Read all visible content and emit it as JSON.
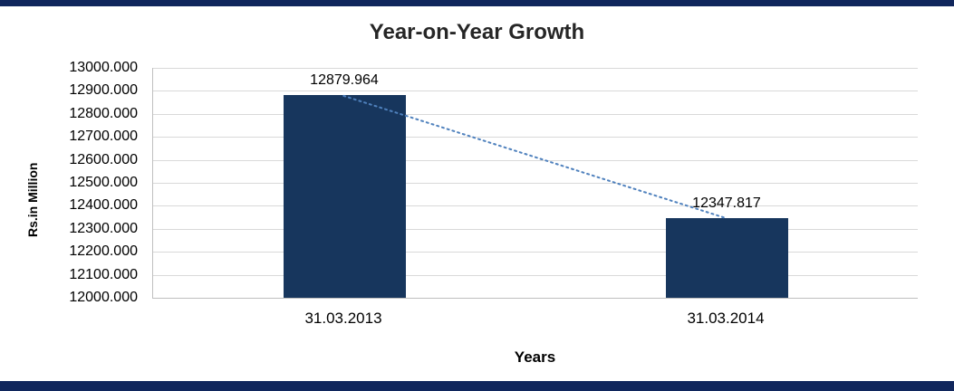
{
  "chart_data": {
    "type": "bar",
    "title": "Year-on-Year Growth",
    "categories": [
      "31.03.2013",
      "31.03.2014"
    ],
    "values": [
      12879.964,
      12347.817
    ],
    "data_labels": [
      "12879.964",
      "12347.817"
    ],
    "xlabel": "Years",
    "ylabel": "Rs.in Million",
    "ylim": [
      12000,
      13000
    ],
    "ytick_step": 100,
    "ytick_decimals": 3,
    "ytick_labels": [
      "12000.000",
      "12100.000",
      "12200.000",
      "12300.000",
      "12400.000",
      "12500.000",
      "12600.000",
      "12700.000",
      "12800.000",
      "12900.000",
      "13000.000"
    ],
    "grid": true,
    "legend": false,
    "has_trendline": true,
    "bar_color": "#17365D",
    "trendline_color": "#4F81BD",
    "gridline_color": "#d9d9d9",
    "axis_color": "#bfbfbf",
    "frame_color": "#10265C"
  }
}
